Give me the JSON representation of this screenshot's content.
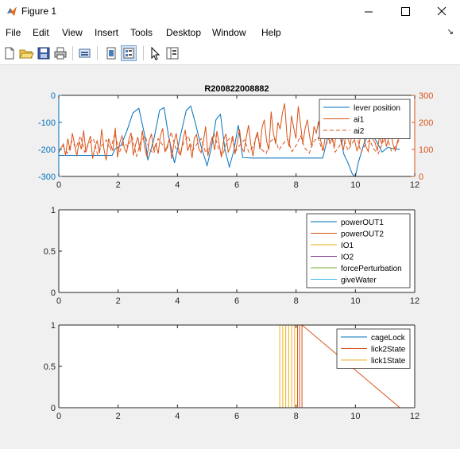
{
  "window": {
    "title": "Figure 1",
    "minimize_icon": "minimize-icon",
    "maximize_icon": "maximize-icon",
    "close_icon": "close-icon"
  },
  "menu": {
    "items": [
      "File",
      "Edit",
      "View",
      "Insert",
      "Tools",
      "Desktop",
      "Window",
      "Help"
    ],
    "overflow_icon": "dock-arrow-icon"
  },
  "toolbar": {
    "icons": [
      "new-figure-icon",
      "open-file-icon",
      "save-icon",
      "print-icon",
      "link-plot-icon",
      "hide-plot-tools-icon",
      "show-plot-tools-icon",
      "pointer-icon",
      "property-inspector-icon"
    ]
  },
  "colors": {
    "c1": "#0072BD",
    "c2": "#D95319",
    "c3": "#EDB120",
    "c4": "#7E2F8E",
    "c5": "#77AC30",
    "c6": "#4DBEEE"
  },
  "chart_data": [
    {
      "type": "line",
      "title": "R200822008882",
      "x_ticks": [
        "0",
        "2",
        "4",
        "6",
        "8",
        "10",
        "12"
      ],
      "xlim": [
        0,
        12
      ],
      "ylim_left": [
        -300,
        0
      ],
      "y_ticks_left": [
        "0",
        "-100",
        "-200",
        "-300"
      ],
      "ylim_right": [
        0,
        300
      ],
      "y_ticks_right": [
        "300",
        "200",
        "100",
        "0"
      ],
      "legend": [
        "lever position",
        "ai1",
        "ai2"
      ],
      "legend_location": "northeast",
      "series": [
        {
          "name": "lever position",
          "axis": "left",
          "color": "#0072BD",
          "x": [
            0,
            1.0,
            1.8,
            1.9,
            2.1,
            2.3,
            2.5,
            2.7,
            2.9,
            3.0,
            3.2,
            3.4,
            3.55,
            3.7,
            3.9,
            4.1,
            4.3,
            4.45,
            4.6,
            4.8,
            5.0,
            5.15,
            5.3,
            5.45,
            5.6,
            5.75,
            5.9,
            6.05,
            6.2,
            6.5,
            8.0,
            8.7,
            8.9,
            9.1,
            9.3,
            9.5,
            9.6,
            9.75,
            9.9,
            10.0,
            10.1,
            10.3,
            10.5,
            10.7,
            10.9,
            11.1,
            11.3,
            11.5
          ],
          "y": [
            -222,
            -222,
            -222,
            -198,
            -185,
            -130,
            -65,
            -48,
            -150,
            -240,
            -165,
            -55,
            -45,
            -150,
            -250,
            -150,
            -55,
            -40,
            -100,
            -190,
            -260,
            -190,
            -90,
            -70,
            -200,
            -265,
            -205,
            -110,
            -230,
            -232,
            -232,
            -232,
            -232,
            -140,
            -85,
            -145,
            -215,
            -250,
            -292,
            -300,
            -248,
            -175,
            -135,
            -168,
            -210,
            -192,
            -198,
            -200
          ]
        },
        {
          "name": "ai1",
          "axis": "right",
          "color": "#D95319",
          "x_range": [
            0,
            11.5
          ],
          "y": [
            88,
            105,
            120,
            78,
            140,
            95,
            160,
            118,
            75,
            130,
            100,
            170,
            90,
            123,
            150,
            66,
            110,
            132,
            85,
            175,
            100,
            60,
            140,
            115,
            95,
            180,
            70,
            125,
            150,
            105,
            88,
            135,
            162,
            78,
            118,
            145,
            92,
            170,
            110,
            72,
            130,
            158,
            98,
            120,
            84,
            150,
            178,
            90,
            112,
            140,
            65,
            125,
            160,
            100,
            80,
            138,
            172,
            95,
            118,
            68,
            142,
            155,
            102,
            88,
            130,
            185,
            76,
            115,
            148,
            97,
            168,
            120,
            70,
            135,
            158,
            90,
            110,
            150,
            82,
            125,
            175,
            104,
            92,
            144,
            190,
            118,
            75,
            138,
            165,
            100,
            182,
            210,
            130,
            98,
            240,
            160,
            120,
            200,
            175,
            235,
            270,
            150,
            110,
            225,
            180,
            140,
            260,
            195,
            120,
            175,
            210,
            150,
            110,
            185,
            160,
            205,
            130,
            95,
            150,
            175,
            120,
            145,
            110,
            168,
            190,
            125,
            98,
            150,
            140,
            115,
            175,
            132,
            95,
            120,
            178,
            145,
            110,
            92,
            160,
            138,
            125,
            95,
            150,
            120,
            170,
            110,
            140,
            160,
            118,
            95,
            132,
            150
          ]
        },
        {
          "name": "ai2",
          "axis": "right",
          "color": "#D95319",
          "dashed": true,
          "x_range": [
            0,
            11.5
          ],
          "y": [
            92,
            112,
            85,
            130,
            105,
            150,
            90,
            122,
            140,
            80,
            115,
            135,
            98,
            160,
            88,
            125,
            110,
            145,
            75,
            130,
            150,
            100,
            85,
            140,
            118,
            95,
            165,
            108,
            82,
            128,
            150,
            96,
            120,
            140,
            88,
            112,
            158,
            102,
            80,
            132,
            146,
            94,
            118,
            136,
            90,
            110,
            155,
            100,
            84,
            130,
            142,
            98,
            122,
            138,
            92,
            116,
            150,
            104,
            86,
            128,
            145,
            98,
            120,
            160,
            90,
            112,
            140,
            96,
            124,
            150,
            88,
            118,
            135,
            100,
            84,
            126,
            148,
            95,
            110,
            140
          ]
        }
      ]
    },
    {
      "type": "line",
      "title": "",
      "x_ticks": [
        "0",
        "2",
        "4",
        "6",
        "8",
        "10",
        "12"
      ],
      "xlim": [
        0,
        12
      ],
      "ylim": [
        0,
        1
      ],
      "y_ticks": [
        "0",
        "0.5",
        "1"
      ],
      "legend": [
        "powerOUT1",
        "powerOUT2",
        "IO1",
        "IO2",
        "forcePerturbation",
        "giveWater"
      ],
      "legend_location": "southeast",
      "series": [
        {
          "name": "powerOUT1",
          "color": "#0072BD",
          "x": [
            0,
            11.5
          ],
          "y": [
            0,
            0
          ]
        },
        {
          "name": "powerOUT2",
          "color": "#D95319",
          "x": [
            0,
            11.5
          ],
          "y": [
            0,
            0
          ]
        },
        {
          "name": "IO1",
          "color": "#EDB120",
          "x": [
            0,
            11.5
          ],
          "y": [
            1,
            1
          ]
        },
        {
          "name": "IO2",
          "color": "#7E2F8E",
          "x": [
            0,
            11.5
          ],
          "y": [
            0,
            0
          ]
        },
        {
          "name": "forcePerturbation",
          "color": "#77AC30",
          "x": [
            0,
            11.5
          ],
          "y": [
            1,
            1
          ]
        },
        {
          "name": "giveWater",
          "color": "#4DBEEE",
          "x": [
            0,
            11.5
          ],
          "y": [
            0,
            0
          ]
        }
      ]
    },
    {
      "type": "line",
      "title": "",
      "x_ticks": [
        "0",
        "2",
        "4",
        "6",
        "8",
        "10",
        "12"
      ],
      "xlim": [
        0,
        12
      ],
      "ylim": [
        0,
        1
      ],
      "y_ticks": [
        "0",
        "0.5",
        "1"
      ],
      "legend": [
        "cageLock",
        "lick2State",
        "lick1State"
      ],
      "legend_location": "northeast",
      "series": [
        {
          "name": "cageLock",
          "color": "#0072BD",
          "x": [
            0,
            11.5
          ],
          "y": [
            1,
            1
          ]
        },
        {
          "name": "lick2State",
          "color": "#D95319",
          "x": [
            0,
            8.05,
            8.05,
            8.12,
            8.12,
            8.2,
            8.2,
            11.5
          ],
          "y": [
            0,
            0,
            1,
            1,
            0,
            0,
            1,
            0
          ]
        },
        {
          "name": "lick1State",
          "color": "#EDB120",
          "x": [
            0,
            7.45,
            7.45,
            7.55,
            7.55,
            7.65,
            7.65,
            7.75,
            7.75,
            7.85,
            7.85,
            7.95,
            7.95,
            11.5
          ],
          "y": [
            0,
            0,
            1,
            1,
            0,
            0,
            1,
            1,
            0,
            0,
            1,
            1,
            0,
            0
          ]
        }
      ]
    }
  ]
}
